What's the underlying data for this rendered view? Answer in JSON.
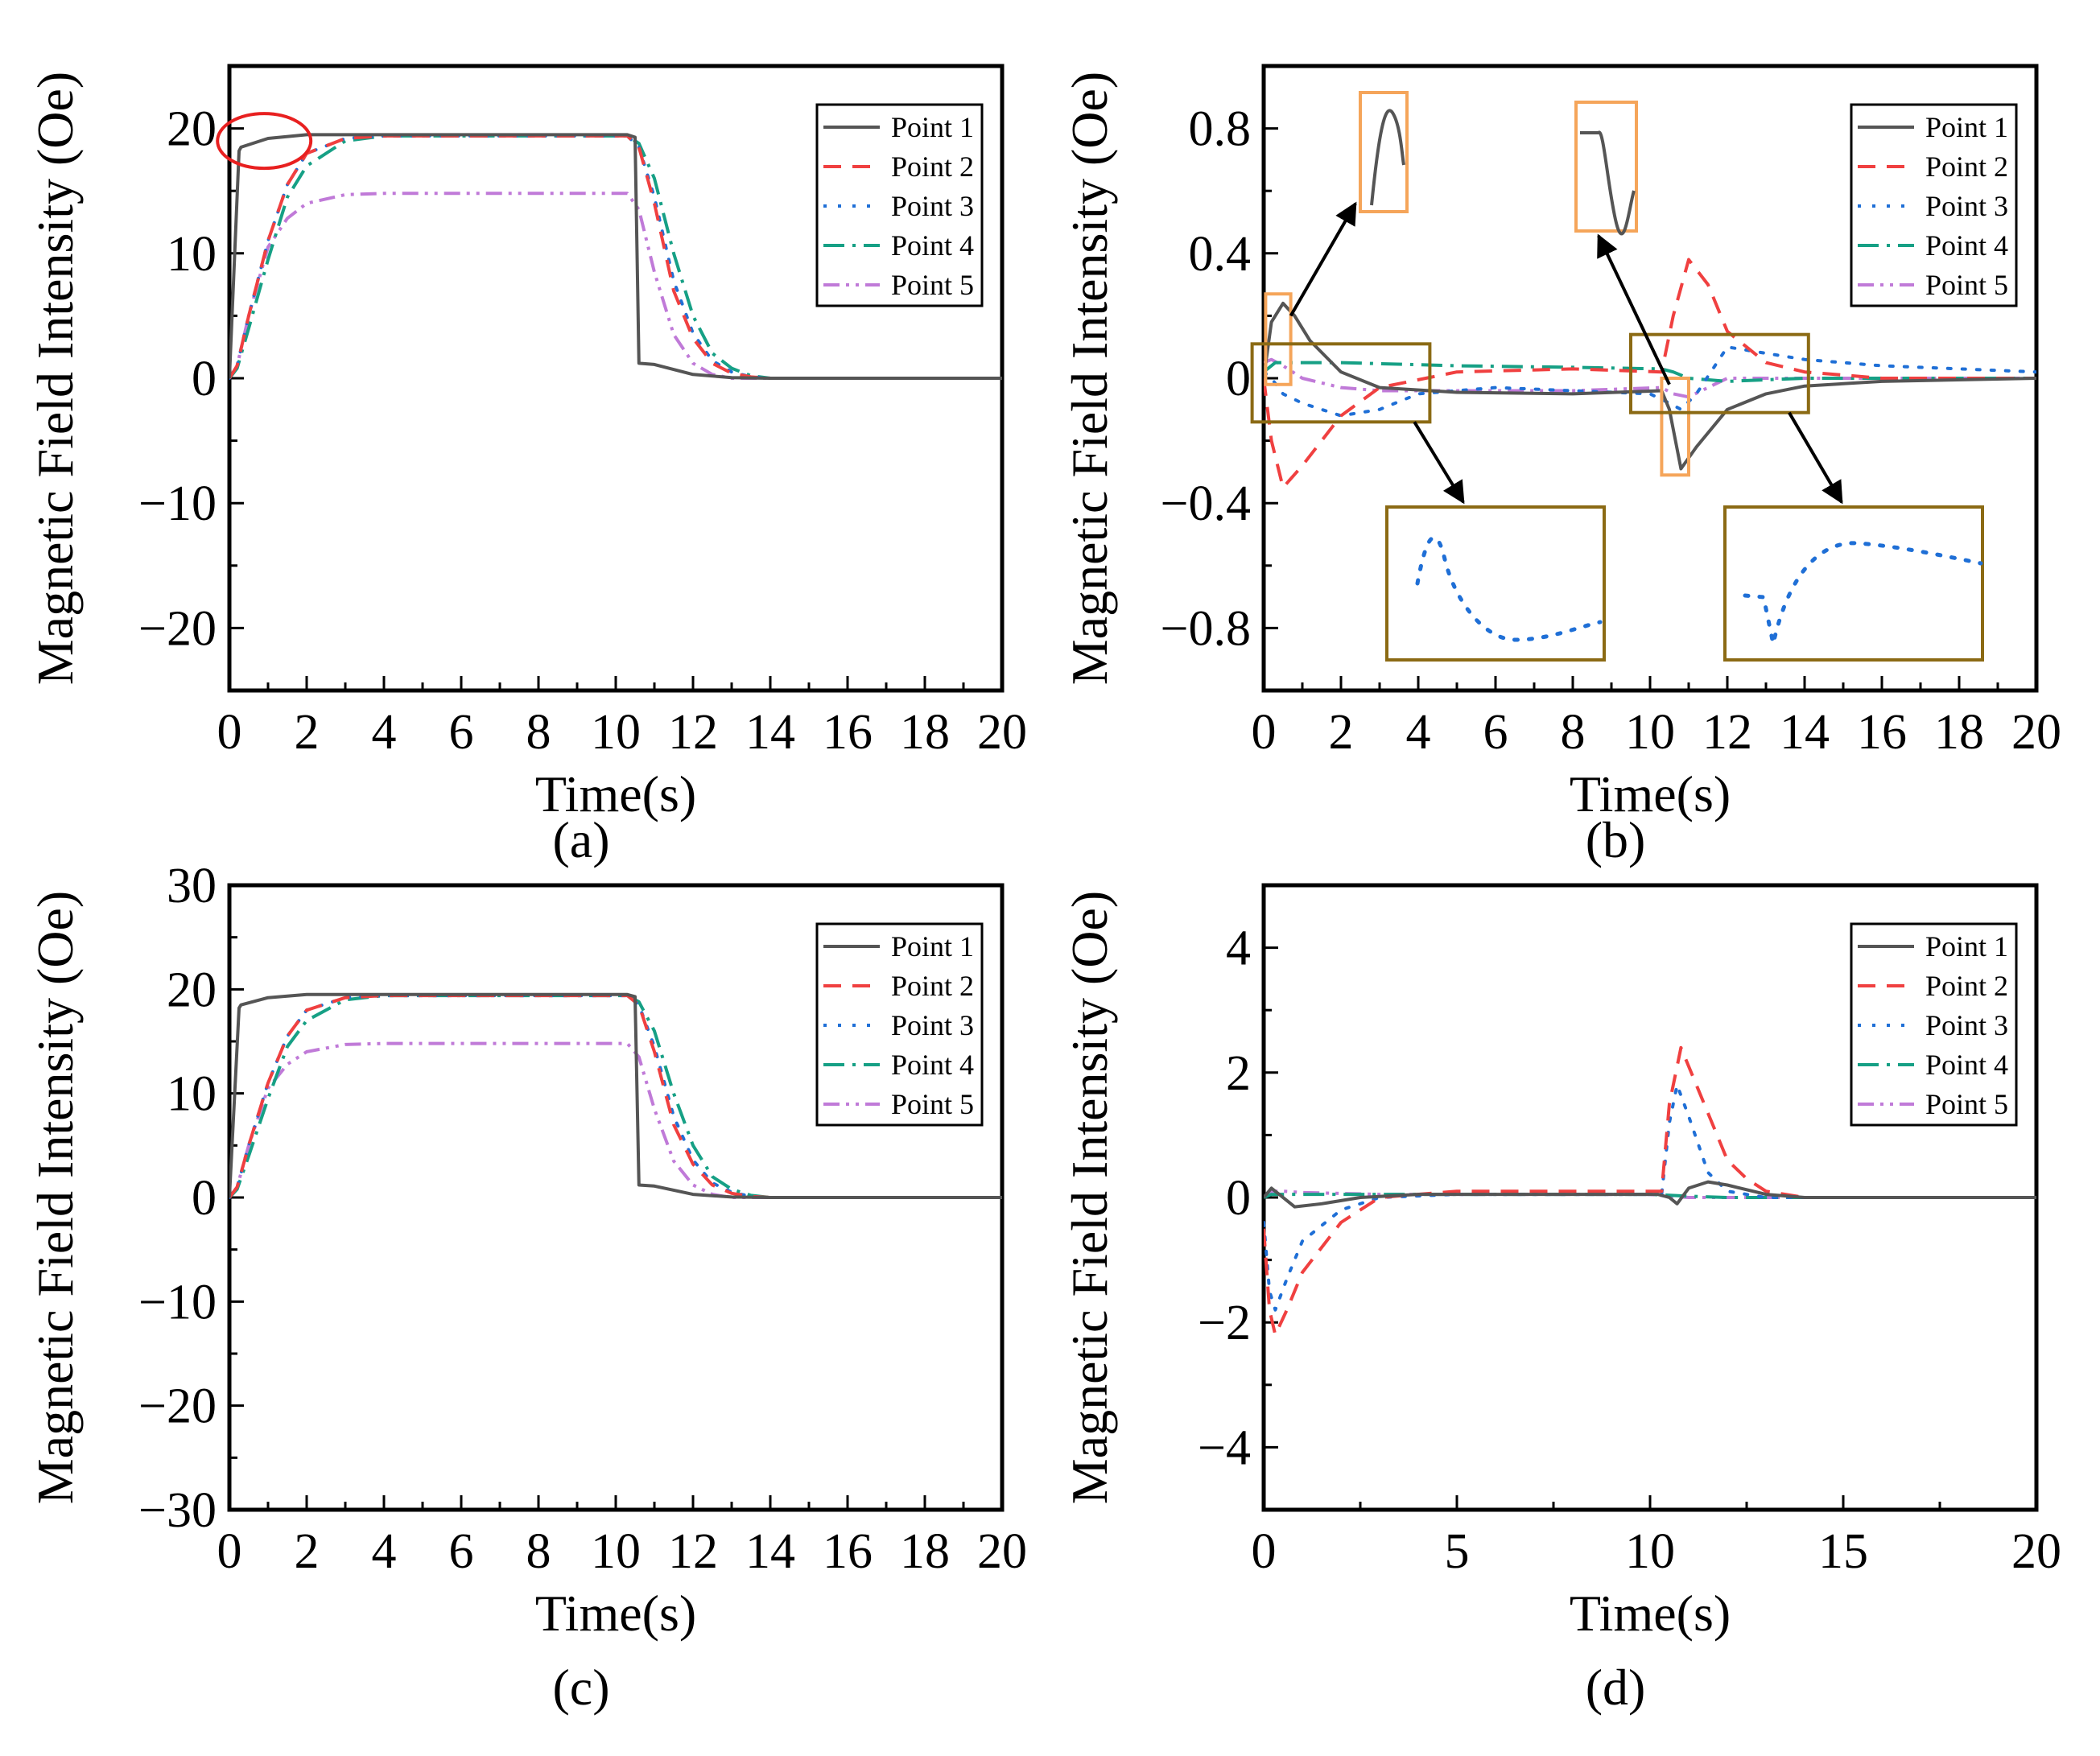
{
  "figure": {
    "series_names": [
      "Point 1",
      "Point 2",
      "Point 3",
      "Point 4",
      "Point 5"
    ],
    "series_colors": [
      "#555555",
      "#f04040",
      "#1f6fd6",
      "#16a085",
      "#c07ad8"
    ],
    "highlight_colors": {
      "circle": "#e82020",
      "orange_box": "#f5a55a",
      "brown_box": "#8b6a14",
      "arrow": "#000000"
    }
  },
  "chart_data": [
    {
      "panel": "a",
      "panel_label": "(a)",
      "type": "line",
      "xlabel": "Time(s)",
      "ylabel": "Magnetic Field Intensity (Oe)",
      "xlim": [
        0,
        20
      ],
      "ylim": [
        -25,
        25
      ],
      "xticks": [
        0,
        2,
        4,
        6,
        8,
        10,
        12,
        14,
        16,
        18,
        20
      ],
      "yticks": [
        -20,
        -10,
        0,
        10,
        20
      ],
      "xtick_labels": [
        "0",
        "2",
        "4",
        "6",
        "8",
        "10",
        "12",
        "14",
        "16",
        "18",
        "20"
      ],
      "ytick_labels": [
        "−20",
        "−10",
        "0",
        "10",
        "20"
      ],
      "legend": [
        "Point 1",
        "Point 2",
        "Point 3",
        "Point 4",
        "Point 5"
      ],
      "legend_position": "top-right",
      "annotation": "red circle around Point 1 at t≈0.3–2 s, value ≈19 Oe",
      "series": [
        {
          "name": "Point 1",
          "x": [
            0,
            0.25,
            0.3,
            1,
            2,
            3,
            10.3,
            10.5,
            10.6,
            11,
            12,
            13,
            14,
            20
          ],
          "y": [
            0,
            18.2,
            18.5,
            19.2,
            19.5,
            19.5,
            19.5,
            19.3,
            1.2,
            1.1,
            0.3,
            0.05,
            0,
            0
          ]
        },
        {
          "name": "Point 2",
          "x": [
            0,
            0.2,
            0.5,
            1,
            1.5,
            2,
            3,
            4,
            10.3,
            10.6,
            11,
            11.5,
            12,
            12.5,
            13,
            13.5,
            14,
            20
          ],
          "y": [
            0,
            1,
            5,
            11,
            15.5,
            18,
            19.2,
            19.4,
            19.4,
            18.5,
            14,
            7,
            3.2,
            1.2,
            0.4,
            0.1,
            0,
            0
          ]
        },
        {
          "name": "Point 3",
          "x": [
            0,
            0.2,
            0.5,
            1,
            1.5,
            2,
            3,
            4,
            10.3,
            10.6,
            11,
            11.5,
            12,
            12.5,
            13,
            13.5,
            14,
            20
          ],
          "y": [
            0,
            1,
            5,
            11,
            15.5,
            18,
            19.2,
            19.4,
            19.4,
            18.5,
            14.5,
            7.8,
            3.6,
            1.4,
            0.5,
            0.1,
            0,
            0
          ]
        },
        {
          "name": "Point 4",
          "x": [
            0,
            0.2,
            0.5,
            1,
            1.5,
            2,
            3,
            4,
            10.3,
            10.6,
            11,
            11.5,
            12,
            12.5,
            13,
            13.5,
            14,
            20
          ],
          "y": [
            0,
            0.8,
            4,
            9.5,
            14.5,
            17,
            19,
            19.4,
            19.4,
            18.8,
            16,
            10,
            5,
            2,
            0.8,
            0.2,
            0,
            0
          ]
        },
        {
          "name": "Point 5",
          "x": [
            0,
            0.2,
            0.5,
            1,
            1.5,
            2,
            3,
            4,
            10.3,
            10.6,
            11,
            11.5,
            12,
            12.5,
            13,
            20
          ],
          "y": [
            0,
            1,
            5,
            10.5,
            12.8,
            14,
            14.7,
            14.8,
            14.8,
            13.5,
            8.5,
            3.5,
            1.2,
            0.3,
            0,
            0
          ]
        }
      ]
    },
    {
      "panel": "b",
      "panel_label": "(b)",
      "type": "line",
      "xlabel": "Time(s)",
      "ylabel": "Magnetic Field Intensity (Oe)",
      "xlim": [
        0,
        20
      ],
      "ylim": [
        -1,
        1
      ],
      "xticks": [
        0,
        2,
        4,
        6,
        8,
        10,
        12,
        14,
        16,
        18,
        20
      ],
      "yticks": [
        -0.8,
        -0.4,
        0,
        0.4,
        0.8
      ],
      "xtick_labels": [
        "0",
        "2",
        "4",
        "6",
        "8",
        "10",
        "12",
        "14",
        "16",
        "18",
        "20"
      ],
      "ytick_labels": [
        "−0.8",
        "−0.4",
        "0",
        "0.4",
        "0.8"
      ],
      "legend": [
        "Point 1",
        "Point 2",
        "Point 3",
        "Point 4",
        "Point 5"
      ],
      "legend_position": "top-right",
      "annotation": "orange boxes zoom Point 1 peaks at t≈0.5 s and t≈10.7 s; brown boxes zoom Point 3 at t≈0–4 s and t≈9.5–14 s",
      "series": [
        {
          "name": "Point 1",
          "x": [
            0,
            0.2,
            0.5,
            0.8,
            1.2,
            2,
            3,
            5,
            8,
            10.3,
            10.5,
            10.8,
            11.2,
            12,
            13,
            14,
            16,
            20
          ],
          "y": [
            0,
            0.18,
            0.24,
            0.2,
            0.12,
            0.02,
            -0.03,
            -0.045,
            -0.05,
            -0.04,
            -0.1,
            -0.29,
            -0.22,
            -0.1,
            -0.05,
            -0.025,
            -0.01,
            0
          ]
        },
        {
          "name": "Point 2",
          "x": [
            0,
            0.2,
            0.5,
            1,
            2,
            3,
            5,
            8,
            10.3,
            10.6,
            11,
            11.5,
            12,
            13,
            14,
            16,
            20
          ],
          "y": [
            0,
            -0.2,
            -0.35,
            -0.28,
            -0.12,
            -0.03,
            0.02,
            0.03,
            0.02,
            0.2,
            0.38,
            0.3,
            0.15,
            0.05,
            0.02,
            0,
            0
          ]
        },
        {
          "name": "Point 3",
          "x": [
            0,
            0.2,
            0.5,
            1,
            2,
            3,
            4,
            6,
            10,
            10.5,
            10.8,
            11.2,
            12,
            13,
            14,
            16,
            20
          ],
          "y": [
            0.02,
            0,
            -0.05,
            -0.08,
            -0.12,
            -0.1,
            -0.05,
            -0.03,
            -0.05,
            -0.08,
            -0.1,
            -0.05,
            0.1,
            0.08,
            0.06,
            0.04,
            0.02
          ]
        },
        {
          "name": "Point 4",
          "x": [
            0,
            0.3,
            1,
            2,
            5,
            8,
            10.3,
            10.6,
            11,
            12,
            14,
            20
          ],
          "y": [
            0.02,
            0.05,
            0.05,
            0.05,
            0.04,
            0.035,
            0.03,
            0.02,
            0,
            -0.01,
            0,
            0
          ]
        },
        {
          "name": "Point 5",
          "x": [
            0,
            0.2,
            0.5,
            1,
            2,
            3,
            5,
            8,
            10.3,
            10.6,
            11,
            11.5,
            12,
            14,
            20
          ],
          "y": [
            0.05,
            0.06,
            0.04,
            0,
            -0.03,
            -0.04,
            -0.04,
            -0.04,
            -0.03,
            -0.05,
            -0.06,
            -0.03,
            0,
            0,
            0
          ]
        }
      ]
    },
    {
      "panel": "c",
      "panel_label": "(c)",
      "type": "line",
      "xlabel": "Time(s)",
      "ylabel": "Magnetic Field Intensity (Oe)",
      "xlim": [
        0,
        20
      ],
      "ylim": [
        -30,
        30
      ],
      "xticks": [
        0,
        2,
        4,
        6,
        8,
        10,
        12,
        14,
        16,
        18,
        20
      ],
      "yticks": [
        -30,
        -20,
        -10,
        0,
        10,
        20,
        30
      ],
      "xtick_labels": [
        "0",
        "2",
        "4",
        "6",
        "8",
        "10",
        "12",
        "14",
        "16",
        "18",
        "20"
      ],
      "ytick_labels": [
        "−30",
        "−20",
        "−10",
        "0",
        "10",
        "20",
        "30"
      ],
      "legend": [
        "Point 1",
        "Point 2",
        "Point 3",
        "Point 4",
        "Point 5"
      ],
      "legend_position": "top-right",
      "series": [
        {
          "name": "Point 1",
          "x": [
            0,
            0.25,
            0.3,
            1,
            2,
            3,
            10.3,
            10.5,
            10.6,
            11,
            12,
            13,
            14,
            20
          ],
          "y": [
            0,
            18.2,
            18.5,
            19.2,
            19.5,
            19.5,
            19.5,
            19.3,
            1.2,
            1.1,
            0.3,
            0.05,
            0,
            0
          ]
        },
        {
          "name": "Point 2",
          "x": [
            0,
            0.2,
            0.5,
            1,
            1.5,
            2,
            3,
            4,
            10.3,
            10.6,
            11,
            11.5,
            12,
            12.5,
            13,
            13.5,
            14,
            20
          ],
          "y": [
            0,
            1,
            5,
            11,
            15.5,
            18,
            19.2,
            19.4,
            19.4,
            18.5,
            14,
            7,
            3.2,
            1.2,
            0.4,
            0.1,
            0,
            0
          ]
        },
        {
          "name": "Point 3",
          "x": [
            0,
            0.2,
            0.5,
            1,
            1.5,
            2,
            3,
            4,
            10.3,
            10.6,
            11,
            11.5,
            12,
            12.5,
            13,
            13.5,
            14,
            20
          ],
          "y": [
            0,
            1,
            5,
            11,
            15.5,
            18,
            19.2,
            19.4,
            19.4,
            18.5,
            14.5,
            7.8,
            3.6,
            1.4,
            0.5,
            0.1,
            0,
            0
          ]
        },
        {
          "name": "Point 4",
          "x": [
            0,
            0.2,
            0.5,
            1,
            1.5,
            2,
            3,
            4,
            10.3,
            10.6,
            11,
            11.5,
            12,
            12.5,
            13,
            13.5,
            14,
            20
          ],
          "y": [
            0,
            0.8,
            4,
            9.5,
            14.5,
            17,
            19,
            19.4,
            19.4,
            18.8,
            16,
            10,
            5,
            2,
            0.8,
            0.2,
            0,
            0
          ]
        },
        {
          "name": "Point 5",
          "x": [
            0,
            0.2,
            0.5,
            1,
            1.5,
            2,
            3,
            4,
            10.3,
            10.6,
            11,
            11.5,
            12,
            12.5,
            13,
            20
          ],
          "y": [
            0,
            1,
            5,
            10.5,
            12.8,
            14,
            14.7,
            14.8,
            14.8,
            13.5,
            8.5,
            3.5,
            1.2,
            0.3,
            0,
            0
          ]
        }
      ]
    },
    {
      "panel": "d",
      "panel_label": "(d)",
      "type": "line",
      "xlabel": "Time(s)",
      "ylabel": "Magnetic Field Intensity (Oe)",
      "xlim": [
        0,
        20
      ],
      "ylim": [
        -5,
        5
      ],
      "xticks": [
        0,
        5,
        10,
        15,
        20
      ],
      "yticks": [
        -4,
        -2,
        0,
        2,
        4
      ],
      "xtick_labels": [
        "0",
        "5",
        "10",
        "15",
        "20"
      ],
      "ytick_labels": [
        "−4",
        "−2",
        "0",
        "2",
        "4"
      ],
      "legend": [
        "Point 1",
        "Point 2",
        "Point 3",
        "Point 4",
        "Point 5"
      ],
      "legend_position": "top-right",
      "series": [
        {
          "name": "Point 1",
          "x": [
            0,
            0.2,
            0.4,
            0.8,
            1.5,
            2.5,
            4,
            10.2,
            10.5,
            10.7,
            11,
            11.5,
            12,
            13,
            14,
            20
          ],
          "y": [
            0,
            0.15,
            0.05,
            -0.15,
            -0.1,
            0,
            0.05,
            0.05,
            0,
            -0.1,
            0.15,
            0.25,
            0.2,
            0.05,
            0,
            0
          ]
        },
        {
          "name": "Point 2",
          "x": [
            0,
            0.15,
            0.3,
            0.6,
            1,
            2,
            3,
            5,
            10.3,
            10.5,
            10.8,
            11.2,
            12,
            12.5,
            13,
            14,
            20
          ],
          "y": [
            -0.5,
            -1.8,
            -2.2,
            -1.8,
            -1.2,
            -0.4,
            0,
            0.1,
            0.1,
            1.5,
            2.4,
            1.8,
            0.6,
            0.3,
            0.1,
            0,
            0
          ]
        },
        {
          "name": "Point 3",
          "x": [
            0,
            0.15,
            0.3,
            0.6,
            1,
            2,
            3,
            5,
            10.3,
            10.5,
            10.7,
            11,
            11.5,
            12,
            13,
            20
          ],
          "y": [
            -0.4,
            -1.5,
            -1.8,
            -1.3,
            -0.7,
            -0.2,
            0,
            0.05,
            0.05,
            1.2,
            1.8,
            1.3,
            0.4,
            0.1,
            0,
            0
          ]
        },
        {
          "name": "Point 4",
          "x": [
            0,
            0.2,
            0.5,
            1,
            3,
            10,
            11,
            12,
            20
          ],
          "y": [
            0,
            0.05,
            0.05,
            0.05,
            0.05,
            0.05,
            0.02,
            0,
            0
          ]
        },
        {
          "name": "Point 5",
          "x": [
            0,
            0.2,
            0.5,
            1,
            3,
            10,
            10.5,
            11,
            12,
            20
          ],
          "y": [
            0,
            0.1,
            0.1,
            0.08,
            0.05,
            0.05,
            0.02,
            0,
            0,
            0
          ]
        }
      ]
    }
  ]
}
